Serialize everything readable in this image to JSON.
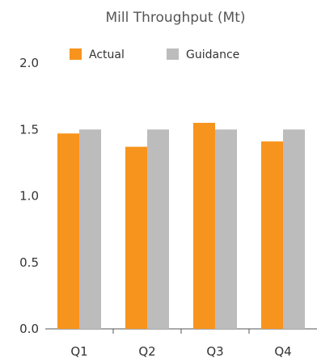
{
  "chart_data": {
    "type": "bar",
    "title": "Mill Throughput (Mt)",
    "xlabel": "",
    "ylabel": "",
    "categories": [
      "Q1",
      "Q2",
      "Q3",
      "Q4"
    ],
    "series": [
      {
        "name": "Actual",
        "values": [
          1.47,
          1.37,
          1.55,
          1.41
        ],
        "color": "#f7941d"
      },
      {
        "name": "Guidance",
        "values": [
          1.5,
          1.5,
          1.5,
          1.5
        ],
        "color": "#bcbcbc"
      }
    ],
    "ylim": [
      0,
      2.0
    ],
    "yticks": [
      "0.0",
      "0.5",
      "1.0",
      "1.5",
      "2.0"
    ],
    "legend": "top",
    "grid": false
  }
}
